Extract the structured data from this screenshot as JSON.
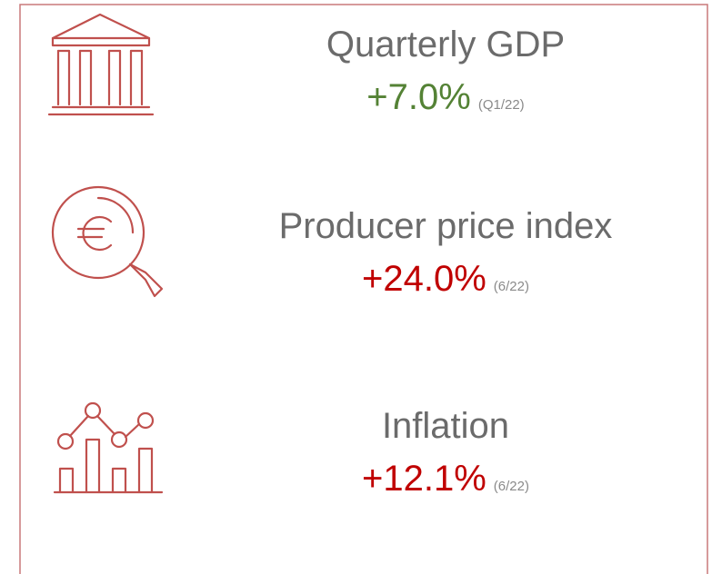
{
  "items": [
    {
      "title": "Quarterly GDP",
      "value": "+7.0%",
      "period": "(Q1/22)",
      "color": "#548235"
    },
    {
      "title": "Producer price index",
      "value": "+24.0%",
      "period": "(6/22)",
      "color": "#c00000"
    },
    {
      "title": "Inflation",
      "value": "+12.1%",
      "period": "(6/22)",
      "color": "#c00000"
    }
  ]
}
